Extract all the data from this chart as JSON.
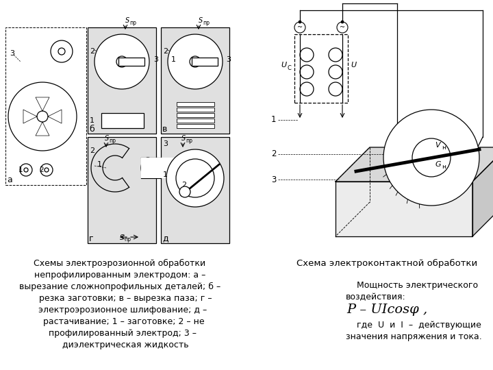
{
  "bg_color": "#ffffff",
  "fig_width": 7.2,
  "fig_height": 5.4,
  "dpi": 100,
  "left_caption": "Схемы электроэрозионной обработки\nнепрофилированным электродом: а –\nвырезание сложнопрофильных деталей; б –\n    резка заготовки; в – вырезка паза; г –\n  электроэрозионное шлифование; д –\n   растачивание; 1 – заготовке; 2 – не\n  профилированный электрод; 3 –\n    диэлектрическая жидкость",
  "right_caption_title": "Схема электроконтактной обработки",
  "right_caption_body": "    Мощность электрического\nвоздействия:",
  "right_caption_formula": "P – UIcosφ ,",
  "right_caption_note": "    где  U  и  I  –  действующие\nзначения напряжения и тока.",
  "font_size_caption": 9.0,
  "font_size_title": 9.5,
  "font_size_formula": 14
}
